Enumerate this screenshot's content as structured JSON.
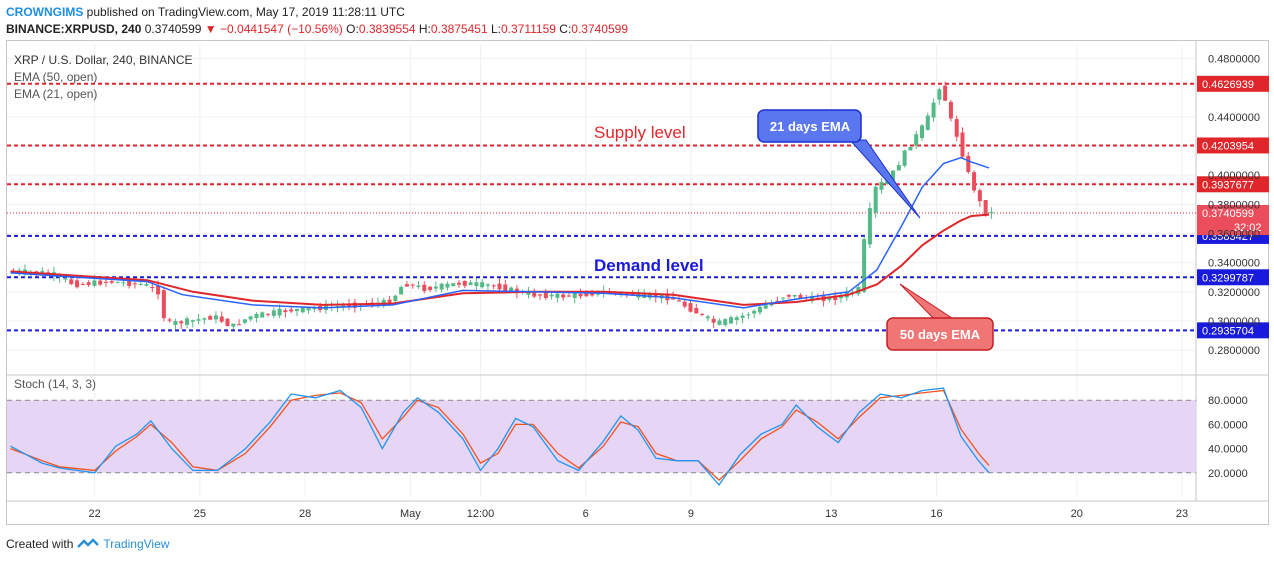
{
  "header": {
    "author": "CROWNGIMS",
    "published": "published on TradingView.com, May 17, 2019 11:28:11 UTC",
    "symbol": "BINANCE:XRPUSD, 240",
    "price": "0.3740599",
    "change": "−0.0441547 (−10.56%)",
    "ohlc_o": "0.3839554",
    "ohlc_h": "0.3875451",
    "ohlc_l": "0.3711159",
    "ohlc_c": "0.3740599"
  },
  "legend": {
    "title": "XRP / U.S. Dollar, 240, BINANCE",
    "ema50": "EMA (50, open)",
    "ema21": "EMA (21, open)",
    "stoch": "Stoch (14, 3, 3)"
  },
  "annotations": {
    "supply": "Supply level",
    "demand": "Demand level",
    "ema21_callout": "21 days EMA",
    "ema50_callout": "50 days EMA"
  },
  "levels": [
    {
      "value": 0.4626939,
      "label": "0.4626939",
      "color": "#e0262b"
    },
    {
      "value": 0.4203954,
      "label": "0.4203954",
      "color": "#e0262b"
    },
    {
      "value": 0.3937677,
      "label": "0.3937677",
      "color": "#e0262b"
    },
    {
      "value": 0.3583427,
      "label": "0.3583427",
      "color": "#1a1adc"
    },
    {
      "value": 0.3299787,
      "label": "0.3299787",
      "color": "#1a1adc"
    },
    {
      "value": 0.2935704,
      "label": "0.2935704",
      "color": "#1a1adc"
    }
  ],
  "current": {
    "value": 0.3740599,
    "label": "0.3740599",
    "countdown": "32:02"
  },
  "colors": {
    "up": "#53b987",
    "down": "#eb4d5c",
    "ema21": "#2962ff",
    "ema50": "#e0262b",
    "stoch_k": "#2196f3",
    "stoch_d": "#f4511e",
    "stoch_band": "#e6d5f5"
  },
  "footer": {
    "created": "Created with",
    "brand": "TradingView"
  },
  "chart_data": {
    "type": "candlestick",
    "price_axis": {
      "min": 0.265,
      "max": 0.49,
      "ticks": [
        "0.4800000",
        "0.4400000",
        "0.4000000",
        "0.3800000",
        "0.3600000",
        "0.3400000",
        "0.3200000",
        "0.3000000",
        "0.2800000"
      ]
    },
    "x_ticks": [
      {
        "label": "22",
        "x": 22
      },
      {
        "label": "25",
        "x": 25
      },
      {
        "label": "28",
        "x": 28
      },
      {
        "label": "May",
        "x": 31
      },
      {
        "label": "12:00",
        "x": 33
      },
      {
        "label": "6",
        "x": 36
      },
      {
        "label": "9",
        "x": 39
      },
      {
        "label": "13",
        "x": 43
      },
      {
        "label": "16",
        "x": 46
      },
      {
        "label": "20",
        "x": 50
      },
      {
        "label": "23",
        "x": 53
      }
    ],
    "x_range": [
      19.5,
      53.4
    ],
    "price_path": [
      [
        19.6,
        0.334
      ],
      [
        20.8,
        0.333
      ],
      [
        21.5,
        0.325
      ],
      [
        22.5,
        0.327
      ],
      [
        23.5,
        0.325
      ],
      [
        23.9,
        0.32
      ],
      [
        24.1,
        0.298
      ],
      [
        24.8,
        0.3
      ],
      [
        25.5,
        0.303
      ],
      [
        26.0,
        0.296
      ],
      [
        26.5,
        0.303
      ],
      [
        27.5,
        0.307
      ],
      [
        28.5,
        0.309
      ],
      [
        29.5,
        0.311
      ],
      [
        30.5,
        0.313
      ],
      [
        30.9,
        0.326
      ],
      [
        31.5,
        0.322
      ],
      [
        32.5,
        0.326
      ],
      [
        33.5,
        0.324
      ],
      [
        34.5,
        0.318
      ],
      [
        35.5,
        0.317
      ],
      [
        36.0,
        0.318
      ],
      [
        36.5,
        0.32
      ],
      [
        37.5,
        0.318
      ],
      [
        38.5,
        0.316
      ],
      [
        39.3,
        0.305
      ],
      [
        39.8,
        0.298
      ],
      [
        40.5,
        0.303
      ],
      [
        41.0,
        0.308
      ],
      [
        41.8,
        0.318
      ],
      [
        42.5,
        0.315
      ],
      [
        43.2,
        0.316
      ],
      [
        43.9,
        0.322
      ],
      [
        44.0,
        0.352
      ],
      [
        44.3,
        0.39
      ],
      [
        44.8,
        0.4
      ],
      [
        45.3,
        0.42
      ],
      [
        45.8,
        0.437
      ],
      [
        46.2,
        0.463
      ],
      [
        46.5,
        0.437
      ],
      [
        46.7,
        0.425
      ],
      [
        47.0,
        0.4
      ],
      [
        47.3,
        0.382
      ],
      [
        47.5,
        0.374
      ]
    ],
    "ema21_path": [
      [
        19.6,
        0.333
      ],
      [
        21.5,
        0.33
      ],
      [
        23.5,
        0.327
      ],
      [
        24.5,
        0.318
      ],
      [
        26.5,
        0.311
      ],
      [
        28.5,
        0.309
      ],
      [
        30.5,
        0.311
      ],
      [
        32.5,
        0.321
      ],
      [
        34.5,
        0.32
      ],
      [
        36.5,
        0.319
      ],
      [
        38.5,
        0.316
      ],
      [
        40.5,
        0.309
      ],
      [
        42.0,
        0.315
      ],
      [
        43.5,
        0.32
      ],
      [
        44.3,
        0.335
      ],
      [
        45.0,
        0.365
      ],
      [
        45.6,
        0.392
      ],
      [
        46.2,
        0.408
      ],
      [
        46.7,
        0.412
      ],
      [
        47.0,
        0.409
      ],
      [
        47.5,
        0.405
      ]
    ],
    "ema50_path": [
      [
        19.6,
        0.334
      ],
      [
        21.5,
        0.331
      ],
      [
        23.5,
        0.328
      ],
      [
        24.8,
        0.32
      ],
      [
        26.5,
        0.314
      ],
      [
        28.5,
        0.311
      ],
      [
        30.5,
        0.312
      ],
      [
        32.5,
        0.319
      ],
      [
        34.5,
        0.32
      ],
      [
        36.5,
        0.32
      ],
      [
        38.5,
        0.318
      ],
      [
        40.5,
        0.311
      ],
      [
        42.0,
        0.313
      ],
      [
        43.5,
        0.318
      ],
      [
        44.3,
        0.325
      ],
      [
        45.0,
        0.338
      ],
      [
        45.6,
        0.352
      ],
      [
        46.2,
        0.362
      ],
      [
        46.7,
        0.369
      ],
      [
        47.0,
        0.372
      ],
      [
        47.5,
        0.373
      ]
    ],
    "stoch": {
      "range": [
        0,
        100
      ],
      "bands": [
        20,
        80
      ],
      "ticks": [
        "80.0000",
        "60.0000",
        "40.0000",
        "20.0000"
      ],
      "k_path": [
        [
          19.6,
          42
        ],
        [
          20.5,
          28
        ],
        [
          21.0,
          24
        ],
        [
          22.0,
          20
        ],
        [
          22.6,
          42
        ],
        [
          23.2,
          52
        ],
        [
          23.6,
          63
        ],
        [
          24.2,
          40
        ],
        [
          24.8,
          22
        ],
        [
          25.5,
          22
        ],
        [
          26.3,
          40
        ],
        [
          27.0,
          62
        ],
        [
          27.6,
          85
        ],
        [
          28.3,
          82
        ],
        [
          29.0,
          88
        ],
        [
          29.6,
          74
        ],
        [
          30.2,
          40
        ],
        [
          30.8,
          70
        ],
        [
          31.2,
          82
        ],
        [
          31.8,
          70
        ],
        [
          32.5,
          48
        ],
        [
          33.0,
          22
        ],
        [
          33.5,
          40
        ],
        [
          34.0,
          65
        ],
        [
          34.5,
          58
        ],
        [
          35.2,
          30
        ],
        [
          35.8,
          22
        ],
        [
          36.5,
          46
        ],
        [
          37.0,
          67
        ],
        [
          37.5,
          55
        ],
        [
          38.0,
          32
        ],
        [
          38.6,
          30
        ],
        [
          39.2,
          30
        ],
        [
          39.8,
          10
        ],
        [
          40.4,
          35
        ],
        [
          41.0,
          52
        ],
        [
          41.6,
          60
        ],
        [
          42.0,
          76
        ],
        [
          42.6,
          58
        ],
        [
          43.2,
          45
        ],
        [
          43.8,
          70
        ],
        [
          44.4,
          85
        ],
        [
          45.0,
          82
        ],
        [
          45.6,
          88
        ],
        [
          46.2,
          90
        ],
        [
          46.7,
          50
        ],
        [
          47.2,
          30
        ],
        [
          47.5,
          20
        ]
      ],
      "d_path": [
        [
          19.6,
          40
        ],
        [
          20.5,
          30
        ],
        [
          21.0,
          25
        ],
        [
          22.0,
          22
        ],
        [
          22.6,
          38
        ],
        [
          23.2,
          50
        ],
        [
          23.6,
          60
        ],
        [
          24.2,
          45
        ],
        [
          24.8,
          25
        ],
        [
          25.5,
          22
        ],
        [
          26.3,
          36
        ],
        [
          27.0,
          58
        ],
        [
          27.6,
          80
        ],
        [
          28.3,
          84
        ],
        [
          29.0,
          86
        ],
        [
          29.6,
          78
        ],
        [
          30.2,
          48
        ],
        [
          30.8,
          66
        ],
        [
          31.2,
          80
        ],
        [
          31.8,
          74
        ],
        [
          32.5,
          52
        ],
        [
          33.0,
          28
        ],
        [
          33.5,
          36
        ],
        [
          34.0,
          60
        ],
        [
          34.5,
          60
        ],
        [
          35.2,
          36
        ],
        [
          35.8,
          24
        ],
        [
          36.5,
          42
        ],
        [
          37.0,
          62
        ],
        [
          37.5,
          58
        ],
        [
          38.0,
          36
        ],
        [
          38.6,
          30
        ],
        [
          39.2,
          30
        ],
        [
          39.8,
          14
        ],
        [
          40.4,
          30
        ],
        [
          41.0,
          48
        ],
        [
          41.6,
          58
        ],
        [
          42.0,
          72
        ],
        [
          42.6,
          62
        ],
        [
          43.2,
          48
        ],
        [
          43.8,
          66
        ],
        [
          44.4,
          82
        ],
        [
          45.0,
          84
        ],
        [
          45.6,
          86
        ],
        [
          46.2,
          88
        ],
        [
          46.7,
          56
        ],
        [
          47.2,
          36
        ],
        [
          47.5,
          26
        ]
      ]
    }
  }
}
